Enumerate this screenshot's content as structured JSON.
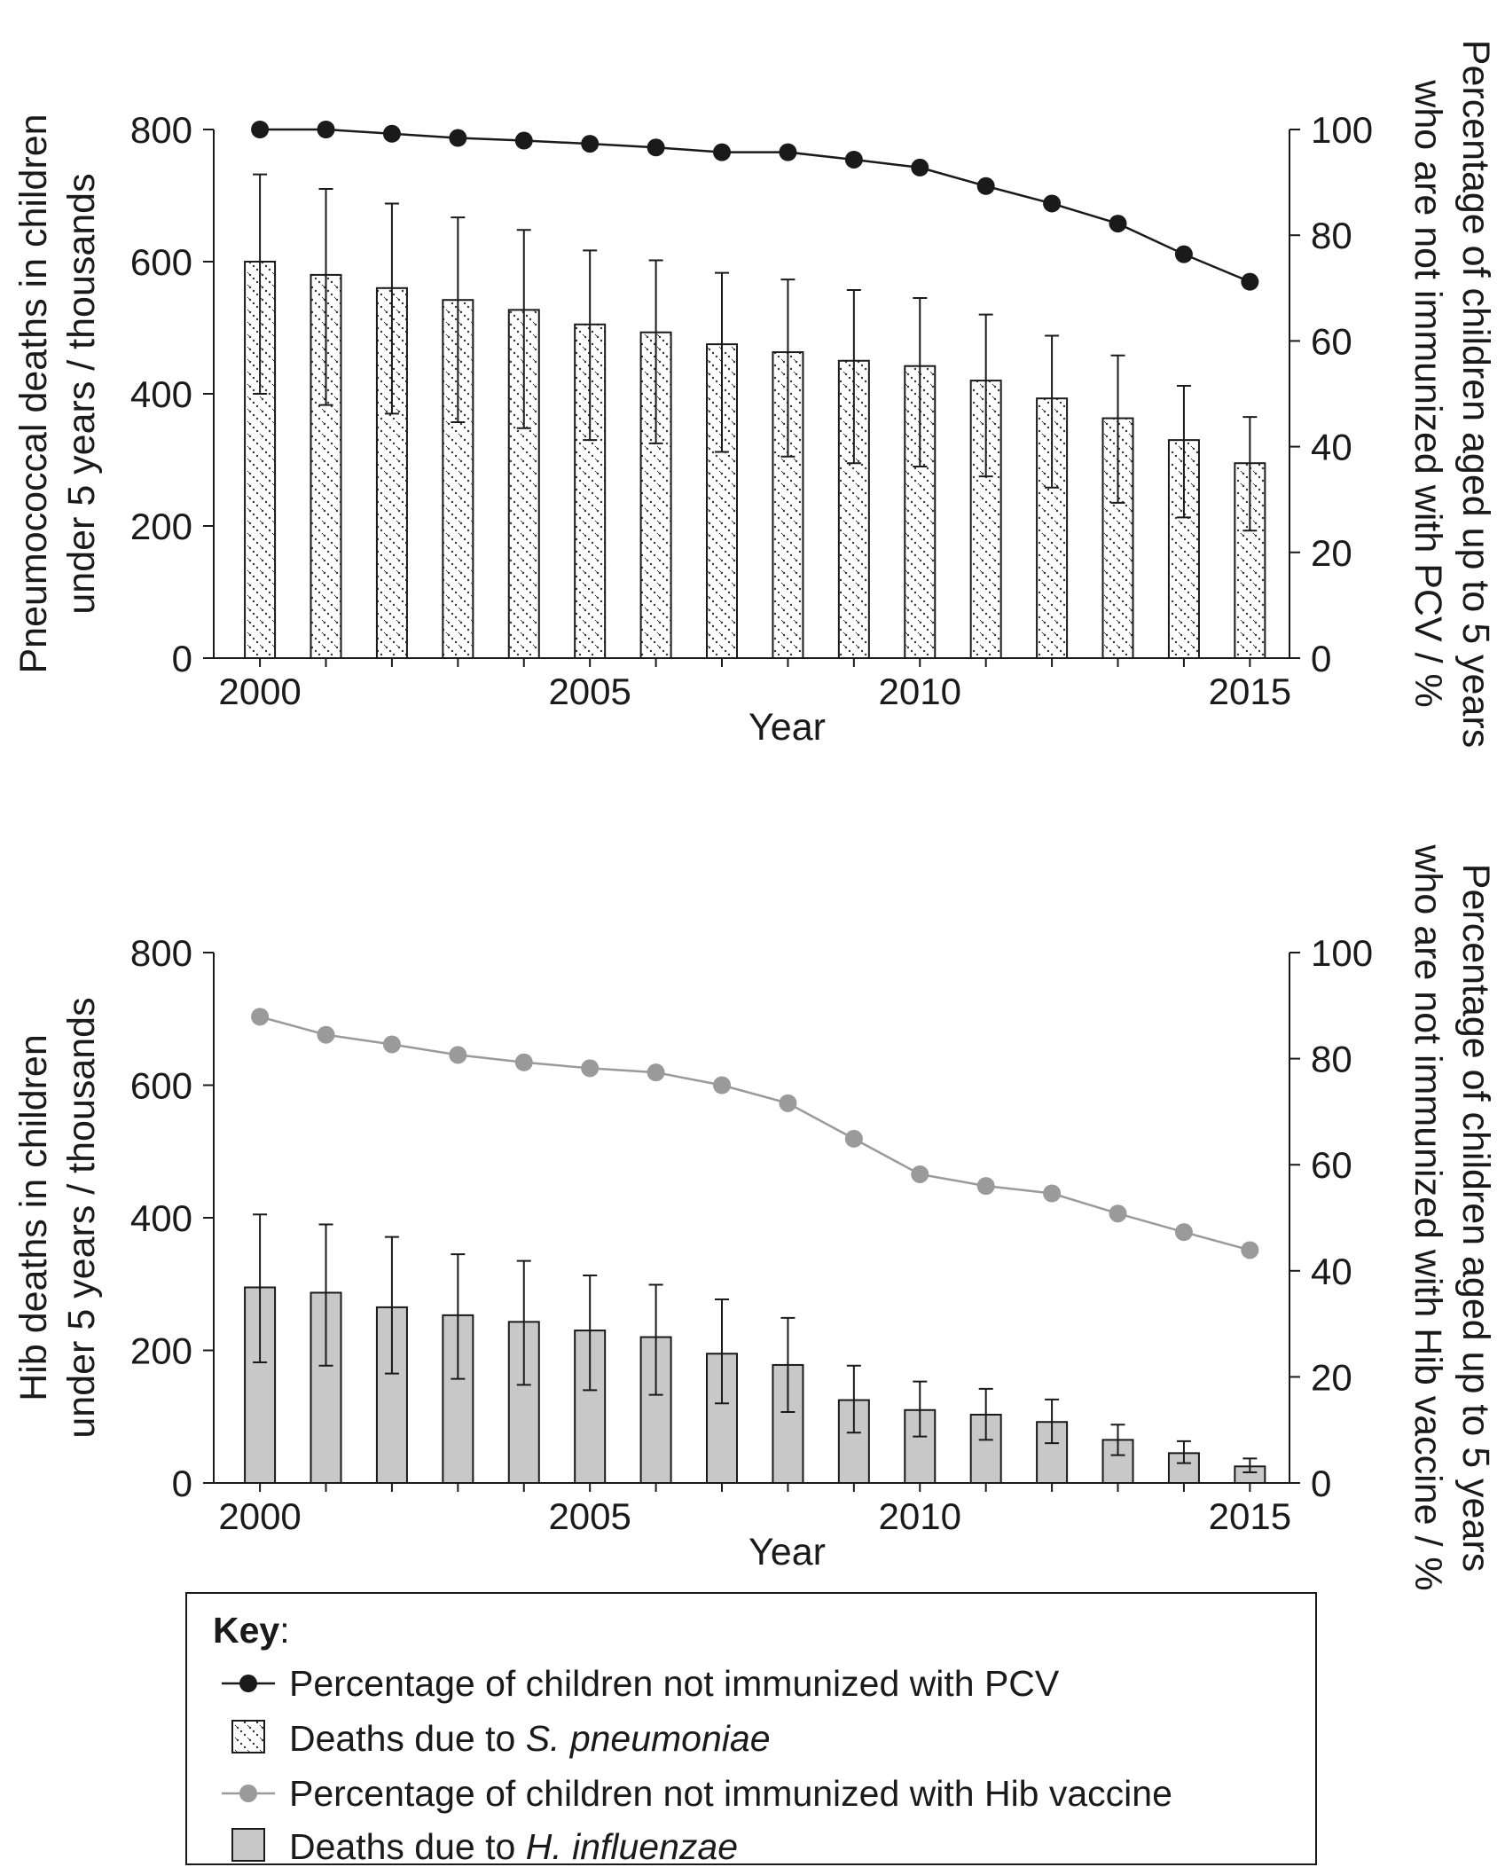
{
  "chart_data": [
    {
      "type": "bar",
      "xlabel": "Year",
      "ylabel": [
        "Pneumococcal deaths in children",
        "under 5 years / thousands"
      ],
      "y2label": [
        "Percentage of children aged up to 5 years",
        "who are not immunized with PCV / %"
      ],
      "x": [
        2000,
        2001,
        2002,
        2003,
        2004,
        2005,
        2006,
        2007,
        2008,
        2009,
        2010,
        2011,
        2012,
        2013,
        2014,
        2015
      ],
      "x_ticks": [
        "2000",
        "2005",
        "2010",
        "2015"
      ],
      "xlim": [
        1999.3,
        2015.6
      ],
      "ylim": [
        0,
        800
      ],
      "y_ticks": [
        "0",
        "200",
        "400",
        "600",
        "800"
      ],
      "y2lim": [
        0,
        100
      ],
      "y2_ticks": [
        "0",
        "20",
        "40",
        "60",
        "80",
        "100"
      ],
      "bars": {
        "name": "Deaths due to S. pneumoniae",
        "style": "dotted-hatch",
        "values": [
          600,
          580,
          560,
          542,
          527,
          505,
          493,
          475,
          463,
          450,
          442,
          420,
          393,
          363,
          330,
          295
        ],
        "err_low": [
          400,
          383,
          370,
          357,
          348,
          330,
          325,
          312,
          305,
          295,
          290,
          275,
          258,
          235,
          213,
          193
        ],
        "err_high": [
          732,
          710,
          688,
          667,
          648,
          617,
          602,
          583,
          573,
          557,
          545,
          520,
          488,
          458,
          412,
          365
        ]
      },
      "line": {
        "name": "Percentage of children not immunized with PCV",
        "color": "#1a1a1a",
        "values": [
          100,
          100,
          99.2,
          98.4,
          97.9,
          97.3,
          96.6,
          95.7,
          95.7,
          94.3,
          92.8,
          89.3,
          86,
          82.2,
          76.4,
          71.2
        ]
      }
    },
    {
      "type": "bar",
      "xlabel": "Year",
      "ylabel": [
        "Hib deaths in children",
        "under 5 years / thousands"
      ],
      "y2label": [
        "Percentage of children aged up to 5 years",
        "who are not immunized with Hib vaccine / %"
      ],
      "x": [
        2000,
        2001,
        2002,
        2003,
        2004,
        2005,
        2006,
        2007,
        2008,
        2009,
        2010,
        2011,
        2012,
        2013,
        2014,
        2015
      ],
      "x_ticks": [
        "2000",
        "2005",
        "2010",
        "2015"
      ],
      "xlim": [
        1999.3,
        2015.6
      ],
      "ylim": [
        0,
        800
      ],
      "y_ticks": [
        "0",
        "200",
        "400",
        "600",
        "800"
      ],
      "y2lim": [
        0,
        100
      ],
      "y2_ticks": [
        "0",
        "20",
        "40",
        "60",
        "80",
        "100"
      ],
      "bars": {
        "name": "Deaths due to H. influenzae",
        "style": "solid-grey",
        "color": "#c8c8c8",
        "values": [
          295,
          287,
          265,
          253,
          243,
          230,
          220,
          195,
          178,
          125,
          110,
          103,
          92,
          65,
          45,
          25
        ],
        "err_low": [
          182,
          177,
          165,
          157,
          148,
          140,
          133,
          120,
          107,
          76,
          70,
          65,
          60,
          42,
          30,
          16
        ],
        "err_high": [
          405,
          390,
          371,
          345,
          335,
          313,
          299,
          277,
          249,
          177,
          153,
          142,
          126,
          88,
          63,
          37
        ]
      },
      "line": {
        "name": "Percentage of children not immunized with Hib vaccine",
        "color": "#9a9a9a",
        "values": [
          87.9,
          84.5,
          82.7,
          80.7,
          79.3,
          78.2,
          77.4,
          75,
          71.6,
          64.9,
          58.2,
          56,
          54.6,
          50.8,
          47.3,
          43.9
        ]
      }
    }
  ],
  "key": {
    "title": "Key",
    "colon": ":",
    "items": [
      {
        "kind": "line-black",
        "text": "Percentage of children not immunized with PCV",
        "italic": ""
      },
      {
        "kind": "box-dotted",
        "text": "Deaths due to ",
        "italic": "S. pneumoniae"
      },
      {
        "kind": "line-grey",
        "text": "Percentage of children not immunized with Hib vaccine",
        "italic": ""
      },
      {
        "kind": "box-grey",
        "text": "Deaths due to ",
        "italic": "H. influenzae"
      }
    ]
  }
}
